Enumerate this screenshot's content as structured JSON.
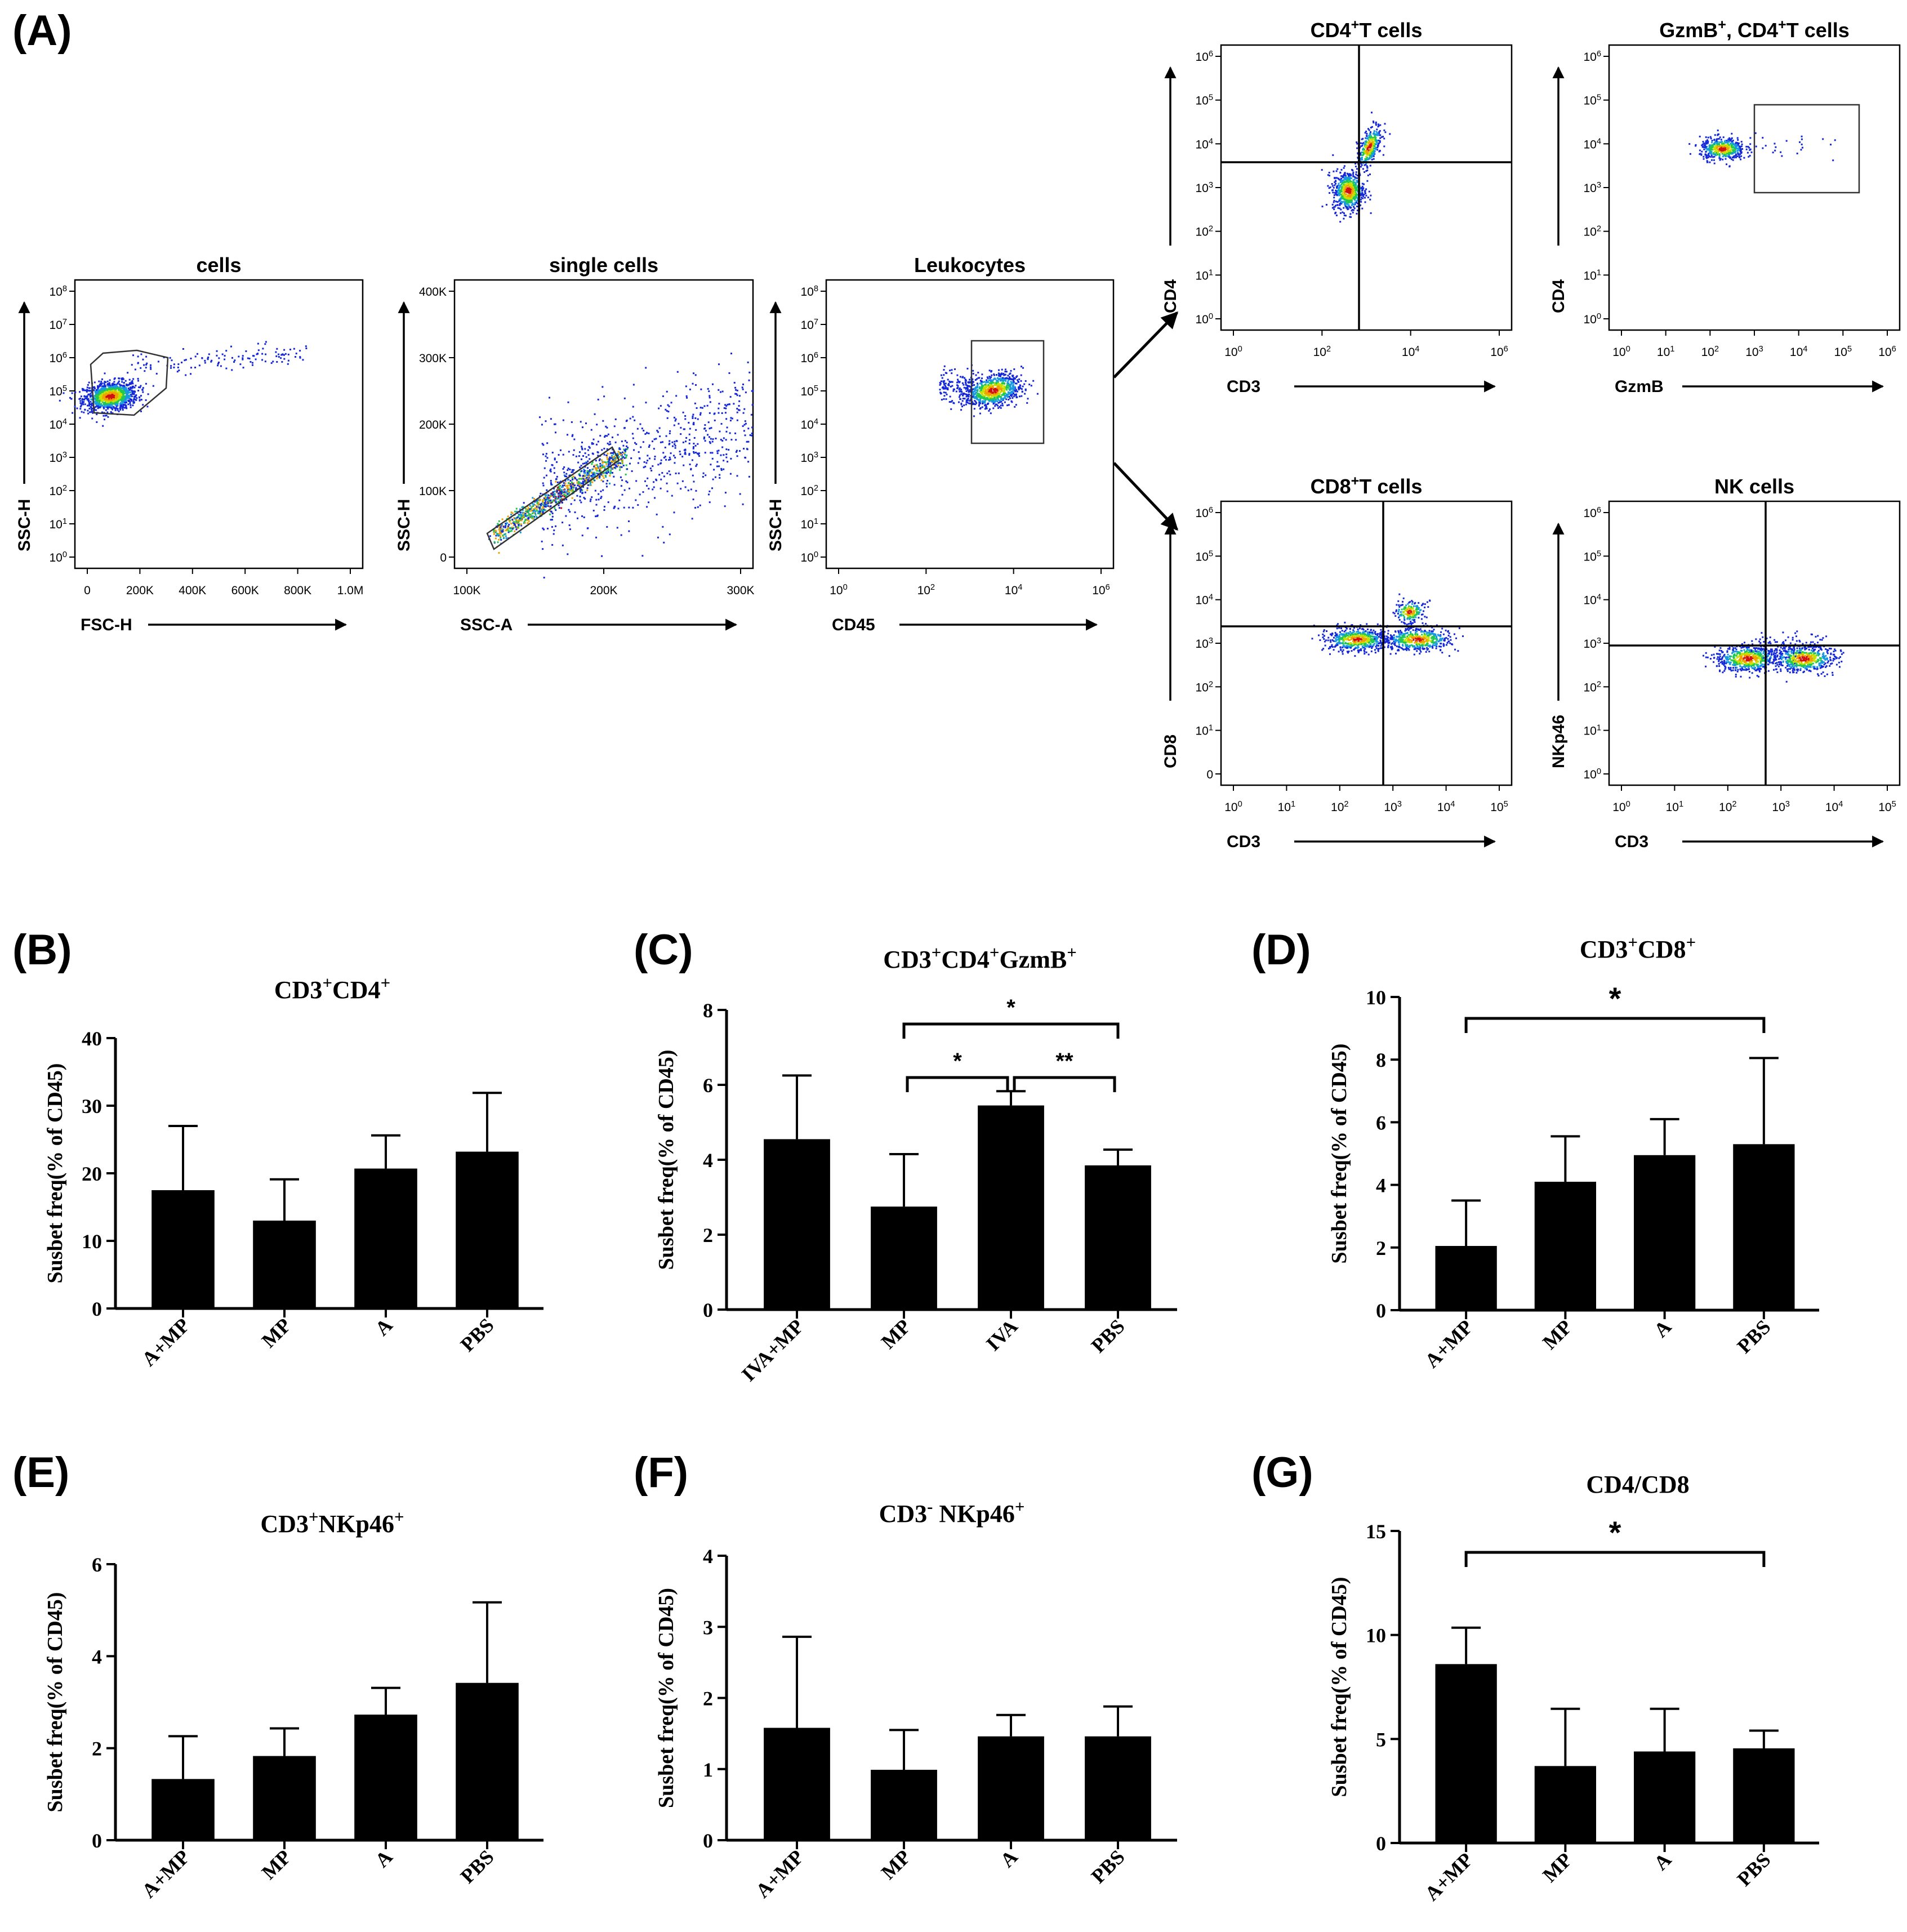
{
  "figure": {
    "panel_labels": [
      "(A)",
      "(B)",
      "(C)",
      "(D)",
      "(E)",
      "(F)",
      "(G)"
    ]
  },
  "flow": {
    "plots": [
      {
        "id": "cells",
        "title": "cells",
        "xlabel": "FSC-H",
        "ylabel": "SSC-H",
        "xticks": [
          "0",
          "200K",
          "400K",
          "600K",
          "800K",
          "1.0M"
        ],
        "yticks": [
          "10^0",
          "10^1",
          "10^2",
          "10^3",
          "10^4",
          "10^5",
          "10^6",
          "10^7",
          "10^8"
        ]
      },
      {
        "id": "single",
        "title": "single cells",
        "xlabel": "SSC-A",
        "ylabel": "SSC-H",
        "xticks": [
          "100K",
          "200K",
          "300K"
        ],
        "yticks": [
          "0",
          "100K",
          "200K",
          "300K",
          "400K"
        ]
      },
      {
        "id": "leuko",
        "title": "Leukocytes",
        "xlabel": "CD45",
        "ylabel": "SSC-H",
        "xticks": [
          "10^0",
          "10^2",
          "10^4",
          "10^6"
        ],
        "yticks": [
          "10^0",
          "10^1",
          "10^2",
          "10^3",
          "10^4",
          "10^5",
          "10^6",
          "10^7",
          "10^8"
        ]
      },
      {
        "id": "cd4t",
        "title": "CD4+T cells",
        "xlabel": "CD3",
        "ylabel": "CD4",
        "xticks": [
          "10^0",
          "10^2",
          "10^4",
          "10^6"
        ],
        "yticks": [
          "10^0",
          "10^1",
          "10^2",
          "10^3",
          "10^4",
          "10^5",
          "10^6"
        ]
      },
      {
        "id": "gzmb",
        "title": "GzmB+, CD4+T cells",
        "xlabel": "GzmB",
        "ylabel": "CD4",
        "xticks": [
          "10^0",
          "10^1",
          "10^2",
          "10^3",
          "10^4",
          "10^5",
          "10^6"
        ],
        "yticks": [
          "10^0",
          "10^1",
          "10^2",
          "10^3",
          "10^4",
          "10^5",
          "10^6"
        ]
      },
      {
        "id": "cd8t",
        "title": "CD8+T cells",
        "xlabel": "CD3",
        "ylabel": "CD8",
        "xticks": [
          "10^0",
          "10^1",
          "10^2",
          "10^3",
          "10^4",
          "10^5"
        ],
        "yticks": [
          "0",
          "10^1",
          "10^2",
          "10^3",
          "10^4",
          "10^5",
          "10^6"
        ]
      },
      {
        "id": "nk",
        "title": "NK cells",
        "xlabel": "CD3",
        "ylabel": "NKp46",
        "xticks": [
          "10^0",
          "10^1",
          "10^2",
          "10^3",
          "10^4",
          "10^5"
        ],
        "yticks": [
          "10^0",
          "10^1",
          "10^2",
          "10^3",
          "10^4",
          "10^5",
          "10^6"
        ]
      }
    ]
  },
  "chart_data": [
    {
      "panel": "B",
      "type": "bar",
      "title": "CD3+CD4+",
      "ylabel": "Susbet freq(% of CD45)",
      "categories": [
        "A+MP",
        "MP",
        "A",
        "PBS"
      ],
      "values": [
        17.5,
        13.0,
        20.7,
        23.2
      ],
      "errors": [
        9.5,
        6.1,
        4.9,
        8.7
      ],
      "ylim": [
        0,
        40
      ],
      "yticks": [
        "0",
        "10",
        "20",
        "30",
        "40"
      ],
      "significance": []
    },
    {
      "panel": "C",
      "type": "bar",
      "title": "CD3+CD4+GzmB+",
      "ylabel": "Susbet freq(% of CD45)",
      "categories": [
        "IVA+MP",
        "MP",
        "IVA",
        "PBS"
      ],
      "values": [
        4.55,
        2.75,
        5.45,
        3.85
      ],
      "errors": [
        1.7,
        1.4,
        0.38,
        0.42
      ],
      "ylim": [
        0,
        8
      ],
      "yticks": [
        "0",
        "2",
        "4",
        "6",
        "8"
      ],
      "significance": [
        {
          "from": 1,
          "to": 3,
          "label": "*"
        },
        {
          "from": 1,
          "to": 2,
          "label": "*"
        },
        {
          "from": 2,
          "to": 3,
          "label": "**"
        }
      ]
    },
    {
      "panel": "D",
      "type": "bar",
      "title": "CD3+CD8+",
      "ylabel": "Susbet freq(% of CD45)",
      "categories": [
        "A+MP",
        "MP",
        "A",
        "PBS"
      ],
      "values": [
        2.05,
        4.1,
        4.95,
        5.3
      ],
      "errors": [
        1.45,
        1.45,
        1.15,
        2.75
      ],
      "ylim": [
        0,
        10
      ],
      "yticks": [
        "0",
        "2",
        "4",
        "6",
        "8",
        "10"
      ],
      "significance": [
        {
          "from": 0,
          "to": 3,
          "label": "*"
        }
      ]
    },
    {
      "panel": "E",
      "type": "bar",
      "title": "CD3+NKp46+",
      "ylabel": "Susbet freq(% of CD45)",
      "categories": [
        "A+MP",
        "MP",
        "A",
        "PBS"
      ],
      "values": [
        1.33,
        1.83,
        2.73,
        3.42
      ],
      "errors": [
        0.93,
        0.6,
        0.58,
        1.75
      ],
      "ylim": [
        0,
        6
      ],
      "yticks": [
        "0",
        "2",
        "4",
        "6"
      ],
      "significance": []
    },
    {
      "panel": "F",
      "type": "bar",
      "title": "CD3- NKp46+",
      "ylabel": "Susbet freq(% of CD45)",
      "categories": [
        "A+MP",
        "MP",
        "A",
        "PBS"
      ],
      "values": [
        1.58,
        0.99,
        1.46,
        1.46
      ],
      "errors": [
        1.28,
        0.56,
        0.3,
        0.42
      ],
      "ylim": [
        0,
        4
      ],
      "yticks": [
        "0",
        "1",
        "2",
        "3",
        "4"
      ],
      "significance": []
    },
    {
      "panel": "G",
      "type": "bar",
      "title": "CD4/CD8",
      "ylabel": "Susbet freq(% of CD45)",
      "categories": [
        "A+MP",
        "MP",
        "A",
        "PBS"
      ],
      "values": [
        8.6,
        3.7,
        4.4,
        4.55
      ],
      "errors": [
        1.75,
        2.75,
        2.05,
        0.85
      ],
      "ylim": [
        0,
        15
      ],
      "yticks": [
        "0",
        "5",
        "10",
        "15"
      ],
      "significance": [
        {
          "from": 0,
          "to": 3,
          "label": "*"
        }
      ]
    }
  ]
}
